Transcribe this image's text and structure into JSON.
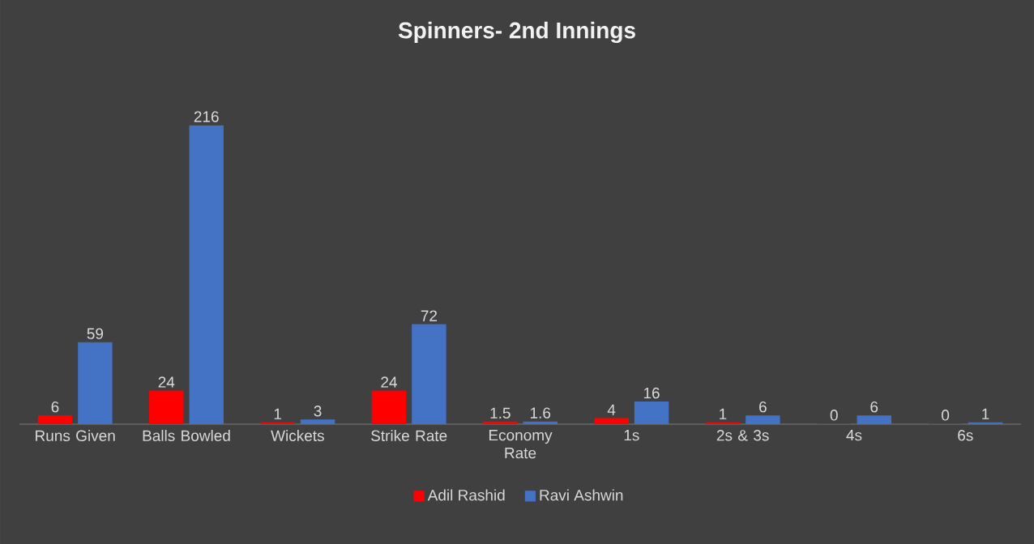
{
  "chart_data": {
    "type": "bar",
    "title": "Spinners- 2nd Innings",
    "categories": [
      "Runs Given",
      "Balls Bowled",
      "Wickets",
      "Strike Rate",
      "Economy Rate",
      "1s",
      "2s & 3s",
      "4s",
      "6s"
    ],
    "series": [
      {
        "name": "Adil Rashid",
        "color": "#ff0000",
        "values": [
          6,
          24,
          1,
          24,
          1.5,
          4,
          1,
          0,
          0
        ]
      },
      {
        "name": "Ravi Ashwin",
        "color": "#4472c4",
        "values": [
          59,
          216,
          3,
          72,
          1.6,
          16,
          6,
          6,
          1
        ]
      }
    ],
    "data_labels": true,
    "legend": "bottom",
    "tick_labels": "x"
  }
}
